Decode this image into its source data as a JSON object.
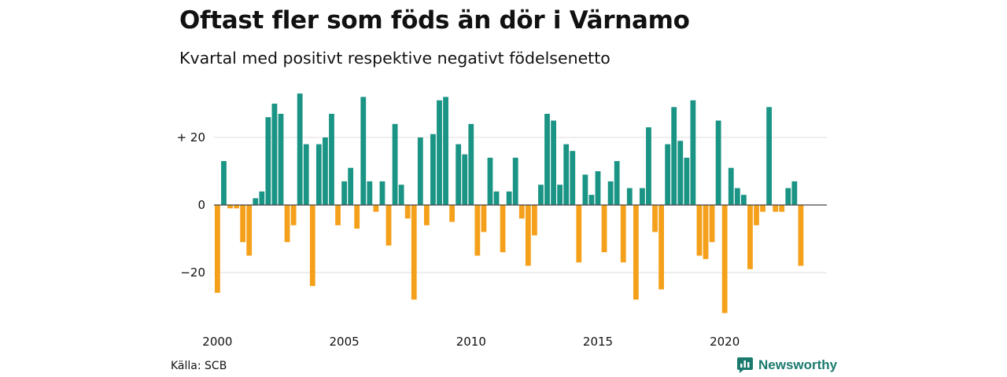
{
  "chart_data": {
    "type": "bar",
    "title": "Oftast fler som föds än dör i Värnamo",
    "subtitle": "Kvartal med positivt respektive negativt födelsenetto",
    "source": "Källa: SCB",
    "brand": "Newsworthy",
    "x_start": "2000 Q1",
    "x_tick_labels": [
      "2000",
      "2005",
      "2010",
      "2015",
      "2020"
    ],
    "y_tick_labels": [
      "+ 20",
      "0",
      "−20"
    ],
    "y_ticks": [
      20,
      0,
      -20
    ],
    "ylim": [
      -32,
      33
    ],
    "grid": true,
    "colors": {
      "positive": "#1a9484",
      "negative": "#f5a01a",
      "grid": "#dddddd"
    },
    "values": [
      -26,
      13,
      -1,
      -1,
      -11,
      -15,
      2,
      4,
      26,
      30,
      27,
      -11,
      -6,
      33,
      18,
      -24,
      18,
      20,
      27,
      -6,
      7,
      11,
      -7,
      32,
      7,
      -2,
      7,
      -12,
      24,
      6,
      -4,
      -28,
      20,
      -6,
      21,
      31,
      32,
      -5,
      18,
      15,
      24,
      -15,
      -8,
      14,
      4,
      -14,
      4,
      14,
      -4,
      -18,
      -9,
      6,
      27,
      25,
      6,
      18,
      16,
      -17,
      9,
      3,
      10,
      -14,
      7,
      13,
      -17,
      5,
      -28,
      5,
      23,
      -8,
      -25,
      18,
      29,
      19,
      14,
      31,
      -15,
      -16,
      -11,
      25,
      -32,
      11,
      5,
      3,
      -19,
      -6,
      -2,
      29,
      -2,
      -2,
      5,
      7,
      -18
    ]
  }
}
